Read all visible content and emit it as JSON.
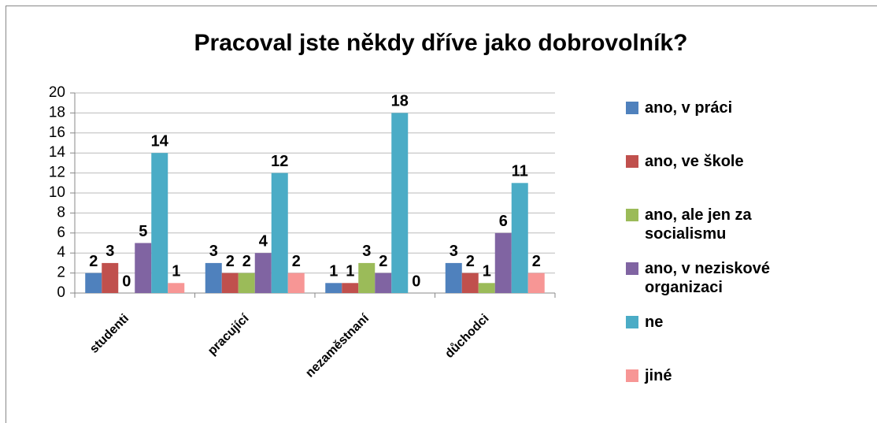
{
  "chart_data": {
    "type": "bar",
    "title": "Pracoval jste někdy dříve jako dobrovolník?",
    "categories": [
      "studenti",
      "pracující",
      "nezaměstnaní",
      "důchodci"
    ],
    "series": [
      {
        "name": "ano, v práci",
        "color": "#4f81bd",
        "values": [
          2,
          3,
          1,
          3
        ]
      },
      {
        "name": "ano, ve škole",
        "color": "#c0504d",
        "values": [
          3,
          2,
          1,
          2
        ]
      },
      {
        "name": "ano, ale jen za socialismu",
        "color": "#9bbb59",
        "values": [
          0,
          2,
          3,
          1
        ]
      },
      {
        "name": "ano, v neziskové organizaci",
        "color": "#8064a2",
        "values": [
          5,
          4,
          2,
          6
        ]
      },
      {
        "name": "ne",
        "color": "#4bacc6",
        "values": [
          14,
          12,
          18,
          11
        ]
      },
      {
        "name": "jiné",
        "color": "#f79695",
        "values": [
          1,
          2,
          0,
          2
        ]
      }
    ],
    "ylim": [
      0,
      20
    ],
    "yticks": [
      0,
      2,
      4,
      6,
      8,
      10,
      12,
      14,
      16,
      18,
      20
    ],
    "grid": true,
    "legend": "right"
  }
}
